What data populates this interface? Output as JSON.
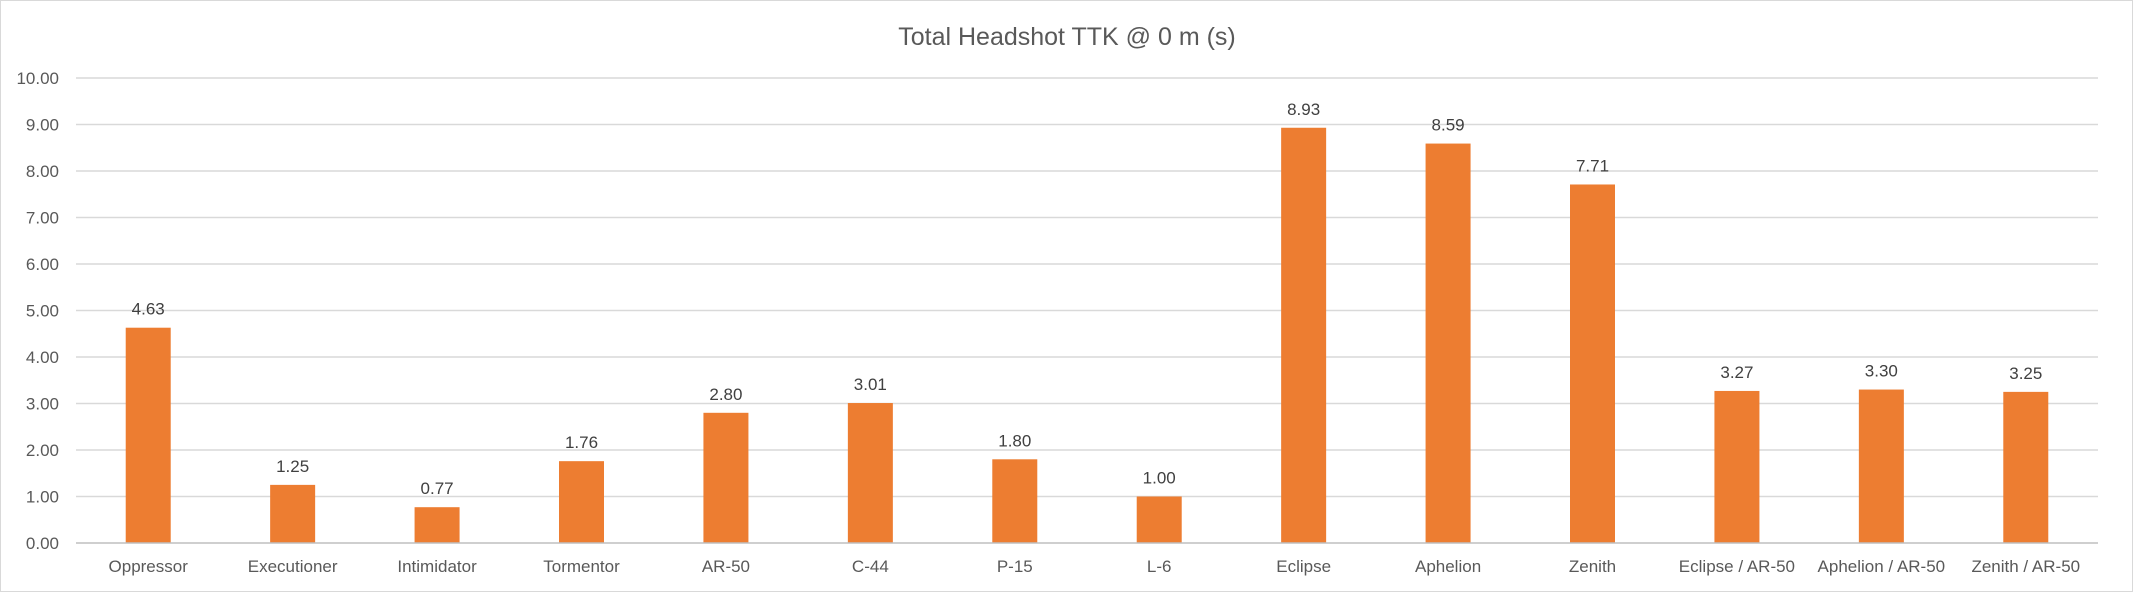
{
  "chart_data": {
    "type": "bar",
    "title": "Total Headshot TTK @ 0 m (s)",
    "xlabel": "",
    "ylabel": "",
    "categories": [
      "Oppressor",
      "Executioner",
      "Intimidator",
      "Tormentor",
      "AR-50",
      "C-44",
      "P-15",
      "L-6",
      "Eclipse",
      "Aphelion",
      "Zenith",
      "Eclipse / AR-50",
      "Aphelion / AR-50",
      "Zenith / AR-50"
    ],
    "values": [
      4.63,
      1.25,
      0.77,
      1.76,
      2.8,
      3.01,
      1.8,
      1.0,
      8.93,
      8.59,
      7.71,
      3.27,
      3.3,
      3.25
    ],
    "value_labels": [
      "4.63",
      "1.25",
      "0.77",
      "1.76",
      "2.80",
      "3.01",
      "1.80",
      "1.00",
      "8.93",
      "8.59",
      "7.71",
      "3.27",
      "3.30",
      "3.25"
    ],
    "ylim": [
      0,
      10
    ],
    "y_ticks": [
      "0.00",
      "1.00",
      "2.00",
      "3.00",
      "4.00",
      "5.00",
      "6.00",
      "7.00",
      "8.00",
      "9.00",
      "10.00"
    ],
    "grid": true,
    "legend": "none",
    "bar_color": "#ED7D31"
  }
}
